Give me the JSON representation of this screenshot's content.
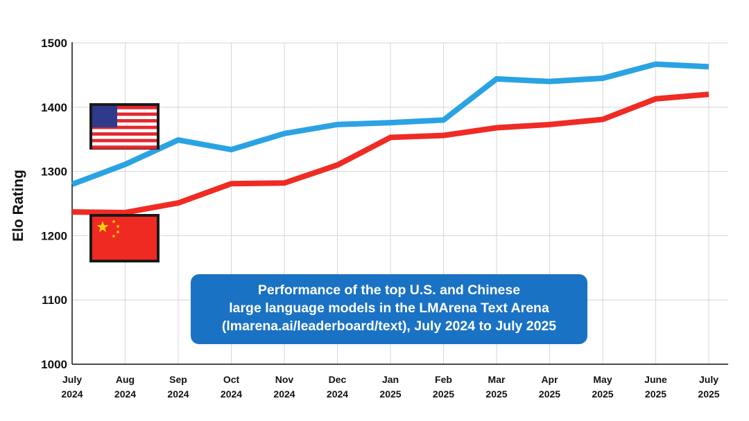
{
  "chart_data": {
    "type": "line",
    "title": "Performance of the top U.S. and Chinese large language models in the LMArena Text Arena (lmarena.ai/leaderboard/text), July 2024 to July 2025",
    "title_lines": [
      "Performance of the top U.S. and Chinese",
      "large language models in the LMArena Text Arena",
      "(lmarena.ai/leaderboard/text), July 2024 to July 2025"
    ],
    "xlabel": "",
    "ylabel": "Elo Rating",
    "ylim": [
      1000,
      1500
    ],
    "yticks": [
      "1000",
      "1100",
      "1200",
      "1300",
      "1400",
      "1500"
    ],
    "categories": [
      [
        "July",
        "2024"
      ],
      [
        "Aug",
        "2024"
      ],
      [
        "Sep",
        "2024"
      ],
      [
        "Oct",
        "2024"
      ],
      [
        "Nov",
        "2024"
      ],
      [
        "Dec",
        "2024"
      ],
      [
        "Jan",
        "2025"
      ],
      [
        "Feb",
        "2025"
      ],
      [
        "Mar",
        "2025"
      ],
      [
        "Apr",
        "2025"
      ],
      [
        "May",
        "2025"
      ],
      [
        "June",
        "2025"
      ],
      [
        "July",
        "2025"
      ]
    ],
    "grid": true,
    "legend": "flag icons at left (U.S. flag above, China flag below)",
    "series": [
      {
        "name": "U.S.",
        "color": "#2aa3e2",
        "values": [
          1280,
          1311,
          1349,
          1334,
          1359,
          1373,
          1376,
          1380,
          1444,
          1440,
          1445,
          1467,
          1463
        ]
      },
      {
        "name": "China",
        "color": "#ef2b24",
        "values": [
          1237,
          1236,
          1251,
          1281,
          1282,
          1310,
          1353,
          1356,
          1368,
          1373,
          1381,
          1413,
          1420
        ]
      }
    ]
  }
}
